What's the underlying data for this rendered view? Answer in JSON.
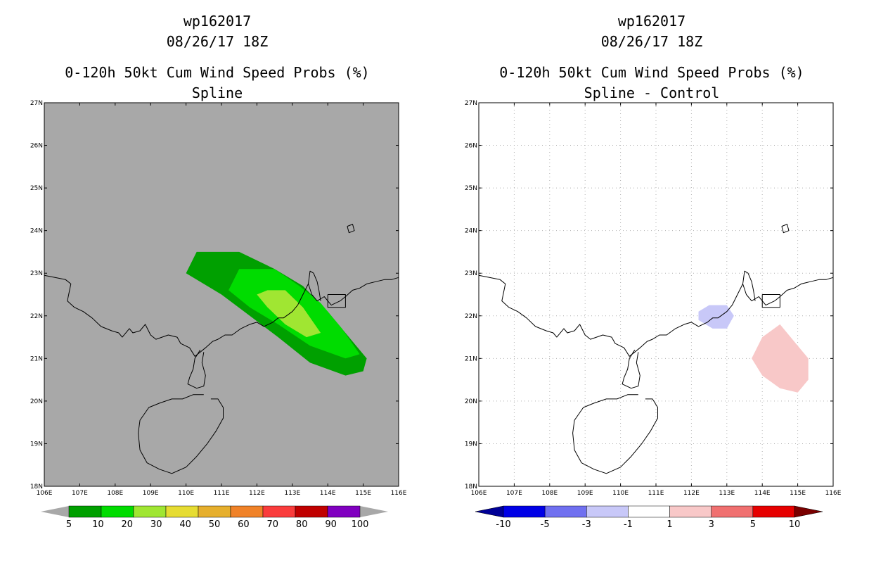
{
  "chart_data": [
    {
      "type": "map-contour",
      "storm_id": "wp162017",
      "datetime": "08/26/17 18Z",
      "title": "0-120h 50kt Cum Wind Speed Probs (%)",
      "subtitle": "Spline",
      "lon_range": [
        106,
        116
      ],
      "lat_range": [
        18,
        27
      ],
      "x_ticks": [
        "106E",
        "107E",
        "108E",
        "109E",
        "110E",
        "111E",
        "112E",
        "113E",
        "114E",
        "115E",
        "116E"
      ],
      "y_ticks": [
        "18N",
        "19N",
        "20N",
        "21N",
        "22N",
        "23N",
        "24N",
        "25N",
        "26N",
        "27N"
      ],
      "background": "#a8a8a8",
      "colorbar": {
        "labels": [
          "5",
          "10",
          "20",
          "30",
          "40",
          "50",
          "60",
          "70",
          "80",
          "90",
          "100"
        ],
        "colors": [
          "#00a000",
          "#00dc00",
          "#a0e632",
          "#e6dc32",
          "#e6af2d",
          "#f08228",
          "#fa3c3c",
          "#c00000",
          "#8000c0"
        ]
      },
      "contours": [
        {
          "level": 5,
          "color": "#00a000",
          "points": [
            [
              110.0,
              23.0
            ],
            [
              110.3,
              23.5
            ],
            [
              111.5,
              23.5
            ],
            [
              112.5,
              23.1
            ],
            [
              113.3,
              22.7
            ],
            [
              114.0,
              22.1
            ],
            [
              114.6,
              21.5
            ],
            [
              115.1,
              21.0
            ],
            [
              115.0,
              20.7
            ],
            [
              114.5,
              20.6
            ],
            [
              113.5,
              20.9
            ],
            [
              112.6,
              21.5
            ],
            [
              111.8,
              22.0
            ],
            [
              111.0,
              22.5
            ]
          ]
        },
        {
          "level": 10,
          "color": "#00dc00",
          "points": [
            [
              111.2,
              22.6
            ],
            [
              111.5,
              23.1
            ],
            [
              112.5,
              23.1
            ],
            [
              113.2,
              22.7
            ],
            [
              113.8,
              22.3
            ],
            [
              114.4,
              21.7
            ],
            [
              114.9,
              21.1
            ],
            [
              114.5,
              21.0
            ],
            [
              113.5,
              21.3
            ],
            [
              112.6,
              21.8
            ],
            [
              111.8,
              22.2
            ]
          ]
        },
        {
          "level": 20,
          "color": "#a0e632",
          "points": [
            [
              112.0,
              22.5
            ],
            [
              112.3,
              22.6
            ],
            [
              112.8,
              22.6
            ],
            [
              113.3,
              22.2
            ],
            [
              113.8,
              21.6
            ],
            [
              113.4,
              21.5
            ],
            [
              112.8,
              21.8
            ],
            [
              112.3,
              22.2
            ]
          ]
        }
      ]
    },
    {
      "type": "map-contour",
      "storm_id": "wp162017",
      "datetime": "08/26/17 18Z",
      "title": "0-120h 50kt Cum Wind Speed Probs (%)",
      "subtitle": "Spline - Control",
      "lon_range": [
        106,
        116
      ],
      "lat_range": [
        18,
        27
      ],
      "x_ticks": [
        "106E",
        "107E",
        "108E",
        "109E",
        "110E",
        "111E",
        "112E",
        "113E",
        "114E",
        "115E",
        "116E"
      ],
      "y_ticks": [
        "18N",
        "19N",
        "20N",
        "21N",
        "22N",
        "23N",
        "24N",
        "25N",
        "26N",
        "27N"
      ],
      "background": "#ffffff",
      "grid": true,
      "colorbar": {
        "labels": [
          "-10",
          "-5",
          "-3",
          "-1",
          "1",
          "3",
          "5",
          "10"
        ],
        "colors": [
          "#000096",
          "#0000e6",
          "#7070f0",
          "#c8c8f8",
          "#ffffff",
          "#f8c8c8",
          "#f07070",
          "#e60000",
          "#7a0000"
        ]
      },
      "contours": [
        {
          "level": -1,
          "color": "#c8c8f8",
          "points": [
            [
              112.2,
              22.1
            ],
            [
              112.5,
              22.25
            ],
            [
              113.0,
              22.25
            ],
            [
              113.2,
              22.0
            ],
            [
              113.0,
              21.7
            ],
            [
              112.6,
              21.7
            ],
            [
              112.2,
              21.9
            ]
          ]
        },
        {
          "level": 1,
          "color": "#f8c8c8",
          "points": [
            [
              113.7,
              21.0
            ],
            [
              114.0,
              21.5
            ],
            [
              114.5,
              21.8
            ],
            [
              115.0,
              21.3
            ],
            [
              115.3,
              21.0
            ],
            [
              115.3,
              20.5
            ],
            [
              115.0,
              20.2
            ],
            [
              114.5,
              20.3
            ],
            [
              114.0,
              20.6
            ]
          ]
        }
      ]
    }
  ]
}
